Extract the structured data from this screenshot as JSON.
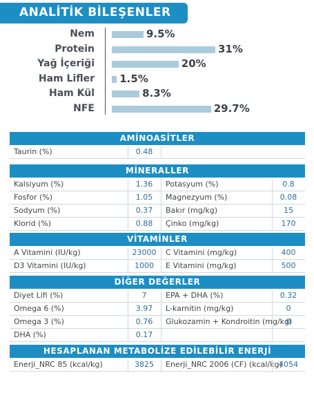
{
  "title": "ANALİTİK BİLEŞENLER",
  "chart_data": {
    "type": "bar",
    "orientation": "horizontal",
    "categories": [
      "Nem",
      "Protein",
      "Yağ İçeriği",
      "Ham Lifler",
      "Ham Kül",
      "NFE"
    ],
    "values": [
      9.5,
      31,
      20,
      1.5,
      8.3,
      29.7
    ],
    "value_labels": [
      "9.5%",
      "31%",
      "20%",
      "1.5%",
      "8.3%",
      "29.7%"
    ],
    "unit": "%",
    "xlim": [
      0,
      31
    ],
    "bar_color": "#a9cbdc"
  },
  "sections": {
    "aminoasitler": {
      "title": "AMİNOASİTLER",
      "rows": [
        {
          "label": "Taurin (%)",
          "value": "0.48"
        }
      ]
    },
    "mineraller": {
      "title": "MİNERALLER",
      "rows": [
        {
          "l1": "Kalsiyum (%)",
          "v1": "1.36",
          "l2": "Potasyum (%)",
          "v2": "0.8"
        },
        {
          "l1": "Fosfor (%)",
          "v1": "1.05",
          "l2": "Magnezyum (%)",
          "v2": "0.08"
        },
        {
          "l1": "Sodyum (%)",
          "v1": "0.37",
          "l2": "Bakır (mg/kg)",
          "v2": "15"
        },
        {
          "l1": "Klorid (%)",
          "v1": "0.88",
          "l2": "Çinko (mg/kg)",
          "v2": "170"
        }
      ]
    },
    "vitaminler": {
      "title": "VİTAMİNLER",
      "rows": [
        {
          "l1": "A Vitamini (IU/kg)",
          "v1": "23000",
          "l2": "C Vitamini (mg/kg)",
          "v2": "400"
        },
        {
          "l1": "D3 Vitamini (IU/kg)",
          "v1": "1000",
          "l2": "E Vitamini (mg/kg)",
          "v2": "500"
        }
      ]
    },
    "diger": {
      "title": "DİĞER DEĞERLER",
      "rows": [
        {
          "l1": "Diyet Lifi (%)",
          "v1": "7",
          "l2": "EPA + DHA (%)",
          "v2": "0.32"
        },
        {
          "l1": "Omega 6 (%)",
          "v1": "3.97",
          "l2": "L-karnitin (mg/kg)",
          "v2": "0"
        },
        {
          "l1": "Omega 3 (%)",
          "v1": "0.76",
          "l2": "Glukozamin + Kondroitin (mg/kg)",
          "v2": "0"
        },
        {
          "l1": "DHA (%)",
          "v1": "0.17",
          "l2": "",
          "v2": ""
        }
      ]
    },
    "enerji": {
      "title": "HESAPLANAN METABOLİZE EDİLEBİLİR ENERJİ",
      "rows": [
        {
          "l1": "Enerji_NRC 85 (kcal/kg)",
          "v1": "3825",
          "l2": "Enerji_NRC 2006 (CF) (kcal/kg)",
          "v2": "4054"
        }
      ]
    }
  }
}
